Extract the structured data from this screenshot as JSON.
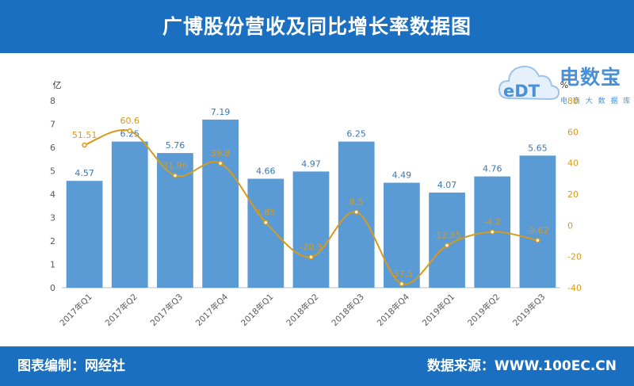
{
  "header": {
    "title": "广博股份营收及同比增长率数据图"
  },
  "footer": {
    "editor": "图表编制：网经社",
    "source": "数据来源：WWW.100EC.CN"
  },
  "logo": {
    "text": "电数宝",
    "subtext": "电 商 大 数 据 库",
    "badge": "eDT"
  },
  "colors": {
    "bar": "#5b9bd5",
    "line": "#d89a1b",
    "header_bg": "#1a6fc0",
    "axis_text": "#595959"
  },
  "chart_data": {
    "type": "bar",
    "categories": [
      "2017年Q1",
      "2017年Q2",
      "2017年Q3",
      "2017年Q4",
      "2018年Q1",
      "2018年Q2",
      "2018年Q3",
      "2018年Q4",
      "2019年Q1",
      "2019年Q2",
      "2019年Q3"
    ],
    "series": [
      {
        "values": [
          4.57,
          6.25,
          5.76,
          7.19,
          4.66,
          4.97,
          6.25,
          4.49,
          4.07,
          4.76,
          5.65
        ],
        "axis": "left"
      },
      {
        "type": "line",
        "axis": "right",
        "values": [
          51.51,
          60.6,
          31.96,
          39.8,
          1.85,
          -20.3,
          8.5,
          -37.5,
          -12.85,
          -4.2,
          -9.62
        ],
        "labels": [
          "51.51",
          "60.6",
          "31.96",
          "39.8",
          "1.85",
          "-20.3",
          "8.5",
          "-37.5",
          "-12.85",
          "-4.2",
          "-9.62"
        ]
      }
    ],
    "ylabel": "亿",
    "y2label": "%",
    "ylim": [
      0,
      8
    ],
    "y2lim": [
      -40,
      80
    ],
    "yticks": [
      0,
      1,
      2,
      3,
      4,
      5,
      6,
      7,
      8
    ],
    "y2ticks": [
      -40,
      -20,
      0,
      20,
      40,
      60,
      80
    ],
    "grid": false
  }
}
